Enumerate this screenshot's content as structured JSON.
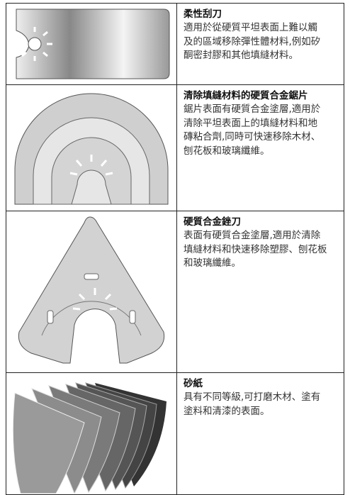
{
  "rows": [
    {
      "title": "柔性刮刀",
      "description_lines": [
        "適用於從硬質平坦表面上難以觸",
        "及的區域移除彈性體材料,例如矽",
        "酮密封膠和其他填縫材料。"
      ]
    },
    {
      "title": "清除填縫材料的硬質合金鋸片",
      "description_lines": [
        "鋸片表面有硬質合金塗層,適用於",
        "清除平坦表面上的填縫材料和地",
        "磚粘合劑,同時可快速移除木材、",
        "刨花板和玻璃纖維。"
      ]
    },
    {
      "title": "硬質合金銼刀",
      "description_lines": [
        "表面有硬質合金塗層,適用於清除",
        "填縫材料和快速移除塑膠、刨花板",
        "和玻璃纖維。"
      ]
    },
    {
      "title": "砂紙",
      "description_lines": [
        "具有不同等級,可打磨木材、塗有",
        "塗料和清漆的表面。"
      ]
    }
  ]
}
